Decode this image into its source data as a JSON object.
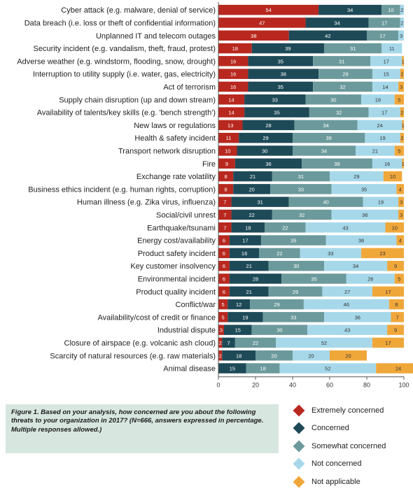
{
  "chart_data": {
    "type": "bar",
    "orientation": "horizontal",
    "stacked": true,
    "categories": [
      "Cyber attack (e.g. malware, denial of service)",
      "Data breach (i.e. loss or theft of confidential information)",
      "Unplanned IT and telecom outages",
      "Security incident (e.g. vandalism, theft, fraud, protest)",
      "Adverse weather (e.g. windstorm, flooding, snow, drought)",
      "Interruption to utility supply (i.e. water, gas, electricity)",
      "Act of terrorism",
      "Supply chain disruption (up and down stream)",
      "Availability of talents/key skills (e.g. 'bench strength')",
      "New laws or regulations",
      "Health & safety incident",
      "Transport network disruption",
      "Fire",
      "Exchange rate volatility",
      "Business ethics incident (e.g. human rights, corruption)",
      "Human illness (e.g. Zika virus, influenza)",
      "Social/civil unrest",
      "Earthquake/tsunami",
      "Energy cost/availability",
      "Product safety incident",
      "Key customer insolvency",
      "Environmental incident",
      "Product quality incident",
      "Conflict/war",
      "Availability/cost of credit or finance",
      "Industrial dispute",
      "Closure of airspace (e.g. volcanic ash cloud)",
      "Scarcity of natural resources (e.g. raw materials)",
      "Animal disease"
    ],
    "series": [
      {
        "name": "Extremely concerned",
        "color": "#b8281f",
        "values": [
          54,
          47,
          38,
          18,
          16,
          16,
          16,
          14,
          14,
          13,
          11,
          10,
          9,
          8,
          8,
          7,
          7,
          7,
          6,
          6,
          6,
          6,
          6,
          5,
          5,
          3,
          2,
          2,
          0
        ]
      },
      {
        "name": "Concerned",
        "color": "#1e4a58",
        "values": [
          34,
          34,
          42,
          39,
          35,
          38,
          35,
          33,
          35,
          28,
          29,
          30,
          36,
          21,
          20,
          31,
          22,
          18,
          17,
          16,
          21,
          28,
          21,
          12,
          19,
          15,
          7,
          18,
          15
        ]
      },
      {
        "name": "Somewhat concerned",
        "color": "#6c9a9c",
        "values": [
          10,
          17,
          17,
          31,
          31,
          29,
          32,
          30,
          32,
          34,
          39,
          34,
          38,
          31,
          33,
          40,
          32,
          22,
          35,
          22,
          30,
          35,
          29,
          29,
          33,
          30,
          22,
          20,
          18
        ]
      },
      {
        "name": "Not concerned",
        "color": "#a6d8ea",
        "values": [
          2,
          2,
          3,
          11,
          17,
          15,
          14,
          18,
          17,
          24,
          19,
          21,
          16,
          29,
          35,
          19,
          36,
          43,
          38,
          33,
          34,
          26,
          27,
          46,
          36,
          43,
          52,
          20,
          52
        ]
      },
      {
        "name": "Not applicable",
        "color": "#f0a73a",
        "values": [
          0,
          0,
          0,
          0,
          1,
          2,
          3,
          5,
          2,
          1,
          2,
          5,
          1,
          10,
          4,
          3,
          3,
          10,
          4,
          23,
          9,
          5,
          17,
          8,
          7,
          9,
          17,
          20,
          24
        ]
      }
    ],
    "xlim": [
      0,
      100
    ],
    "xticks": [
      0,
      20,
      40,
      60,
      80,
      100
    ],
    "legend_position": "bottom-right",
    "grid": false
  },
  "caption": "Figure 1. Based on your analysis, how concerned are you about the following threats to your organization in 2017? (N=666, answers expressed in percentage. Multiple responses allowed.)"
}
